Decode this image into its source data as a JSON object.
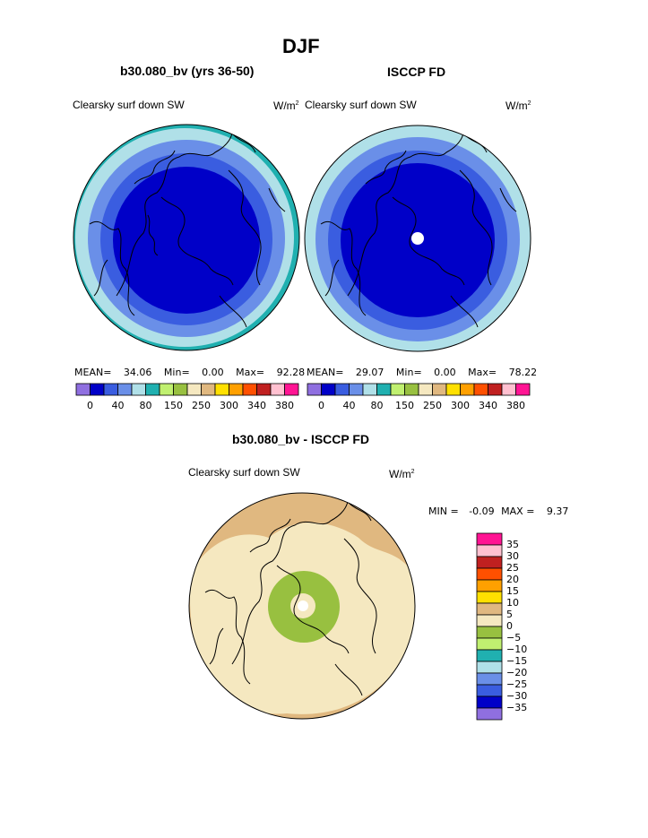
{
  "page": {
    "title": "DJF"
  },
  "palette": {
    "bar": [
      "#8f6fe0",
      "#0000c8",
      "#3a5de0",
      "#6a8fe8",
      "#b0e0e8",
      "#20b0b0",
      "#c0f070",
      "#98c040",
      "#f5e8c0",
      "#e0b880",
      "#ffe000",
      "#ffa000",
      "#ff5000",
      "#c02020",
      "#ffc0d0",
      "#ff1493"
    ],
    "diff": [
      "#8f6fe0",
      "#0000c8",
      "#3a5de0",
      "#6a8fe8",
      "#b0e0e8",
      "#20b0b0",
      "#c0f070",
      "#98c040",
      "#f5e8c0",
      "#e0b880",
      "#ffe000",
      "#ffa000",
      "#ff5000",
      "#c02020",
      "#ffc0d0",
      "#ff1493"
    ]
  },
  "panels": [
    {
      "heading": "b30.080_bv (yrs 36-50)",
      "variable": "Clearsky surf down SW",
      "units_base": "W/m",
      "units_exp": "2",
      "stats": {
        "mean_label": "MEAN=",
        "mean": "34.06",
        "min_label": "Min=",
        "min": "0.00",
        "max_label": "Max=",
        "max": "92.28"
      },
      "colorbar_ticks": [
        "0",
        "40",
        "80",
        "150",
        "250",
        "300",
        "340",
        "380"
      ]
    },
    {
      "heading": "ISCCP FD",
      "variable": "Clearsky surf down SW",
      "units_base": "W/m",
      "units_exp": "2",
      "stats": {
        "mean_label": "MEAN=",
        "mean": "29.07",
        "min_label": "Min=",
        "min": "0.00",
        "max_label": "Max=",
        "max": "78.22"
      },
      "colorbar_ticks": [
        "0",
        "40",
        "80",
        "150",
        "250",
        "300",
        "340",
        "380"
      ]
    }
  ],
  "difference": {
    "heading": "b30.080_bv - ISCCP FD",
    "variable": "Clearsky surf down SW",
    "units_base": "W/m",
    "units_exp": "2",
    "min_label": "MIN =",
    "min": "-0.09",
    "max_label": "MAX =",
    "max": "9.37",
    "colorbar_labels": [
      "35",
      "30",
      "25",
      "20",
      "15",
      "10",
      "5",
      "0",
      "-5",
      "-10",
      "-15",
      "-20",
      "-25",
      "-30",
      "-35"
    ]
  },
  "chart_data": [
    {
      "type": "heatmap",
      "title": "b30.080_bv (yrs 36-50)",
      "projection": "north-polar-stereographic",
      "variable": "Clearsky surf down SW",
      "mean": 34.06,
      "min": 0.0,
      "max": 92.28,
      "levels": [
        0,
        40,
        80,
        150,
        250,
        300,
        340,
        380
      ]
    },
    {
      "type": "heatmap",
      "title": "ISCCP FD",
      "projection": "north-polar-stereographic",
      "variable": "Clearsky surf down SW",
      "mean": 29.07,
      "min": 0.0,
      "max": 78.22,
      "levels": [
        0,
        40,
        80,
        150,
        250,
        300,
        340,
        380
      ]
    },
    {
      "type": "heatmap",
      "title": "b30.080_bv - ISCCP FD",
      "projection": "north-polar-stereographic",
      "variable": "Clearsky surf down SW",
      "min": -0.09,
      "max": 9.37,
      "levels": [
        -35,
        -30,
        -25,
        -20,
        -15,
        -10,
        -5,
        0,
        5,
        10,
        15,
        20,
        25,
        30,
        35
      ]
    }
  ]
}
